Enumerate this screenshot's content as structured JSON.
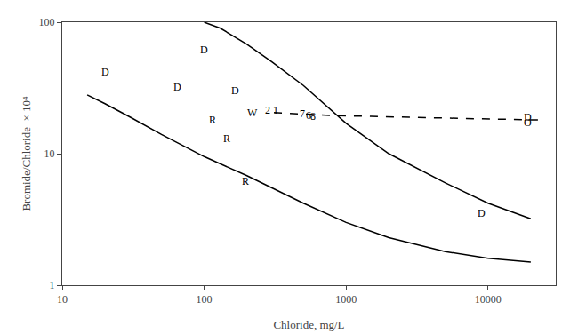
{
  "chart_data": {
    "type": "line",
    "xlabel": "Chloride, mg/L",
    "ylabel": "Bromide/Chloride  × 10⁴",
    "log": true,
    "grid": false,
    "xlim": [
      10,
      30000
    ],
    "ylim": [
      1,
      100
    ],
    "xticks": [
      10,
      100,
      1000,
      10000
    ],
    "yticks": [
      1,
      10,
      100
    ],
    "series": [
      {
        "x": [
          100,
          130,
          200,
          300,
          500,
          700,
          1000,
          2000,
          5000,
          10000,
          20000
        ],
        "values": [
          100,
          90,
          68,
          50,
          33,
          24,
          17,
          10,
          6,
          4.2,
          3.2
        ],
        "color": "#000000",
        "line_style": "solid"
      },
      {
        "x": [
          15,
          20,
          30,
          50,
          100,
          200,
          500,
          1000,
          2000,
          5000,
          10000,
          20000
        ],
        "values": [
          28,
          24,
          19,
          14,
          9.5,
          6.8,
          4.2,
          3.0,
          2.3,
          1.8,
          1.6,
          1.5
        ],
        "color": "#000000",
        "line_style": "solid"
      },
      {
        "x": [
          310,
          500,
          800,
          1500,
          3000,
          7000,
          15000,
          25000
        ],
        "values": [
          20.5,
          20.0,
          19.5,
          19.2,
          18.8,
          18.5,
          18.2,
          18.0
        ],
        "color": "#000000",
        "line_style": "dashed"
      }
    ],
    "annotations": [
      {
        "text": "D",
        "x": 20,
        "y": 42
      },
      {
        "text": "D",
        "x": 100,
        "y": 62
      },
      {
        "text": "D",
        "x": 65,
        "y": 32
      },
      {
        "text": "D",
        "x": 165,
        "y": 30
      },
      {
        "text": "D",
        "x": 9000,
        "y": 3.5
      },
      {
        "text": "R",
        "x": 115,
        "y": 18
      },
      {
        "text": "R",
        "x": 145,
        "y": 13
      },
      {
        "text": "R",
        "x": 195,
        "y": 6.2
      },
      {
        "text": "W",
        "x": 218,
        "y": 20.5
      },
      {
        "text": "2",
        "x": 280,
        "y": 21.5
      },
      {
        "text": "1",
        "x": 320,
        "y": 21.5
      },
      {
        "text": "7",
        "x": 490,
        "y": 20.2
      },
      {
        "text": "6",
        "x": 545,
        "y": 19.5
      },
      {
        "text": "8",
        "x": 585,
        "y": 19.3
      },
      {
        "text": "D",
        "x": 19000,
        "y": 19.0
      },
      {
        "text": "O",
        "x": 19000,
        "y": 17.2
      }
    ]
  }
}
